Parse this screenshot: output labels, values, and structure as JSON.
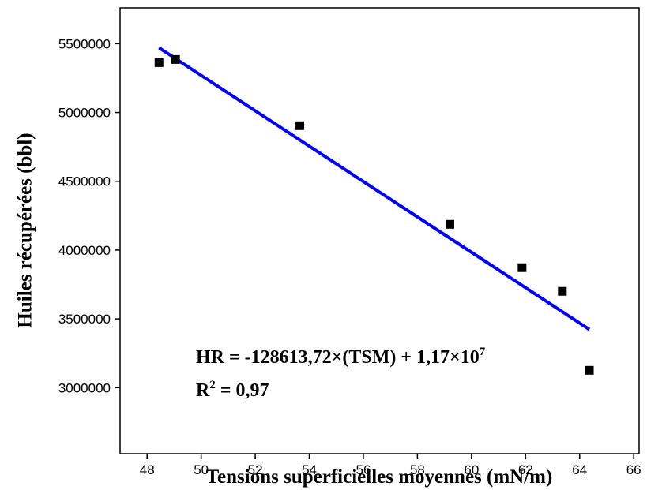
{
  "chart_data": {
    "type": "scatter",
    "xlabel": "Tensions superficielles moyennes (mN/m)",
    "ylabel": "Huiles récupérées (bbl)",
    "points": {
      "color": "#000000",
      "x": [
        48.44,
        49.05,
        53.65,
        59.2,
        61.87,
        63.36,
        64.36
      ],
      "values": [
        5362000,
        5385000,
        4904000,
        4187000,
        3872000,
        3700000,
        3126000
      ]
    },
    "fit": {
      "color": "#0000ff",
      "x": [
        48.44,
        64.36
      ],
      "values": [
        5470000,
        3423000
      ]
    },
    "annotations": [
      {
        "text": "HR = -128613,72×(TSM) + 1,17×10",
        "sup": "7"
      },
      {
        "text": "R",
        "sup": "2",
        "after": " = 0,97"
      }
    ],
    "xlim": [
      47,
      66.2
    ],
    "ylim": [
      2520000,
      5760000
    ],
    "xticks": [
      48,
      50,
      52,
      54,
      56,
      58,
      60,
      62,
      64,
      66
    ],
    "yticks": [
      3000000,
      3500000,
      4000000,
      4500000,
      5000000,
      5500000
    ]
  }
}
